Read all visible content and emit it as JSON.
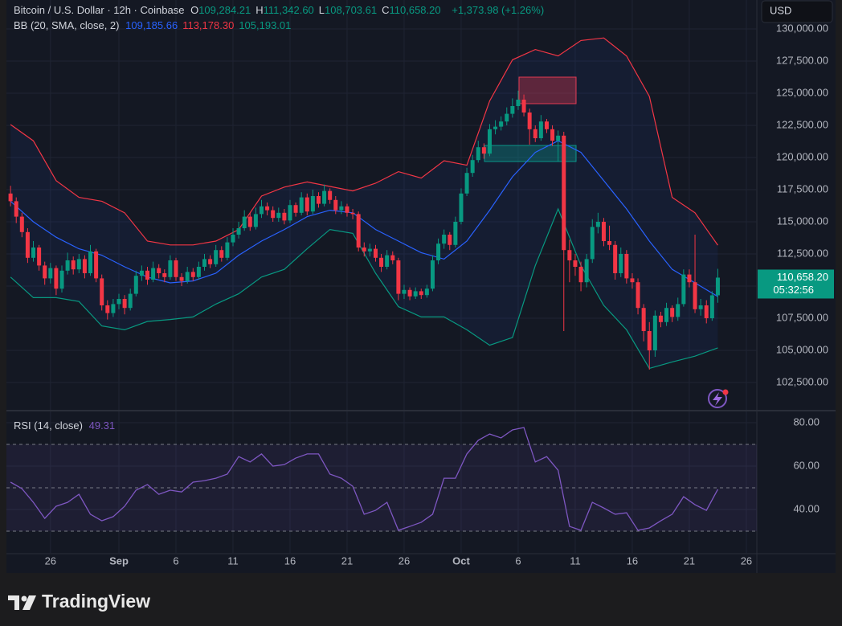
{
  "currency": "USD",
  "branding": "TradingView",
  "chart_data": [
    {
      "type": "candlestick",
      "title": "Bitcoin / U.S. Dollar · 12h · Coinbase",
      "ohlc": [
        {
          "key": "O",
          "label": "109,284.21"
        },
        {
          "key": "H",
          "label": "111,342.60"
        },
        {
          "key": "L",
          "label": "108,703.61"
        },
        {
          "key": "C",
          "label": "110,658.20"
        }
      ],
      "change": "+1,373.98 (+1.26%)",
      "up_color": "#089981",
      "down_color": "#f23645",
      "xlim": [
        22.14,
        87.92
      ],
      "ylim": [
        100375,
        132250
      ],
      "yticks": [
        {
          "value": 102500,
          "label": "102,500.00"
        },
        {
          "value": 105000,
          "label": "105,000.00"
        },
        {
          "value": 107500,
          "label": "107,500.00"
        },
        {
          "value": 110000,
          "label": "110,000.00"
        },
        {
          "value": 112500,
          "label": "112,500.00"
        },
        {
          "value": 115000,
          "label": "115,000.00"
        },
        {
          "value": 117500,
          "label": "117,500.00"
        },
        {
          "value": 120000,
          "label": "120,000.00"
        },
        {
          "value": 122500,
          "label": "122,500.00"
        },
        {
          "value": 125000,
          "label": "125,000.00"
        },
        {
          "value": 127500,
          "label": "127,500.00"
        },
        {
          "value": 130000,
          "label": "130,000.00"
        }
      ],
      "grid": true,
      "x": [
        22.5,
        23,
        23.5,
        24,
        24.5,
        25,
        25.5,
        26,
        26.5,
        27,
        27.5,
        28,
        28.5,
        29,
        29.5,
        30,
        30.5,
        31,
        31.5,
        32,
        32.5,
        33,
        33.5,
        34,
        34.5,
        35,
        35.5,
        36,
        36.5,
        37,
        37.5,
        38,
        38.5,
        39,
        39.5,
        40,
        40.5,
        41,
        41.5,
        42,
        42.5,
        43,
        43.5,
        44,
        44.5,
        45,
        45.5,
        46,
        46.5,
        47,
        47.5,
        48,
        48.5,
        49,
        49.5,
        50,
        50.5,
        51,
        51.5,
        52,
        52.5,
        53,
        53.5,
        54,
        54.5,
        55,
        55.5,
        56,
        56.5,
        57,
        57.5,
        58,
        58.5,
        59,
        59.5,
        60,
        60.5,
        61,
        61.5,
        62,
        62.5,
        63,
        63.5,
        64,
        64.5,
        65,
        65.5,
        66,
        66.5,
        67,
        67.5,
        68,
        68.5,
        69,
        69.5,
        70,
        70.5,
        71,
        71.5,
        72,
        72.5,
        73,
        73.5,
        74,
        74.5,
        75,
        75.5,
        76,
        76.5,
        77,
        77.5,
        78,
        78.5,
        79,
        79.5,
        80,
        80.5,
        81,
        81.5,
        82,
        82.5,
        83,
        83.5,
        84,
        84.5
      ],
      "open": [
        117200,
        116600,
        115400,
        114200,
        112200,
        113000,
        111600,
        110600,
        111400,
        109800,
        111200,
        112000,
        111300,
        112100,
        111000,
        112700,
        110600,
        108500,
        107900,
        108600,
        109000,
        108300,
        109400,
        110800,
        111200,
        110500,
        111400,
        111000,
        110700,
        112000,
        110700,
        110400,
        111100,
        110700,
        111500,
        112100,
        111700,
        112800,
        112200,
        113400,
        114000,
        114500,
        115400,
        114600,
        115600,
        116200,
        115900,
        115300,
        115700,
        115100,
        116300,
        115700,
        116900,
        115800,
        117000,
        116400,
        117400,
        116700,
        115900,
        116200,
        115700,
        115600,
        113000,
        112700,
        112900,
        112200,
        111500,
        112400,
        112000,
        109400,
        109700,
        109200,
        109600,
        109300,
        109800,
        112000,
        113300,
        114000,
        113200,
        115000,
        117200,
        118800,
        119800,
        120800,
        120300,
        122200,
        122400,
        122800,
        123400,
        124000,
        124500,
        123500,
        122200,
        121500,
        122800,
        122200,
        121300,
        121700,
        112800,
        112000,
        111500,
        110300,
        112100,
        114600,
        115000,
        113500,
        113200,
        111000,
        112500,
        110600,
        110300,
        108300,
        106500,
        105000,
        107700,
        107200,
        108300,
        107600,
        108600,
        110900,
        110300,
        108200,
        108500,
        107500,
        109284.21
      ],
      "high": [
        117800,
        116900,
        115700,
        114500,
        113500,
        113200,
        111900,
        111800,
        111600,
        111600,
        112600,
        112300,
        112500,
        112400,
        113200,
        112900,
        110900,
        108900,
        109000,
        109400,
        109300,
        109800,
        111200,
        111600,
        111500,
        111900,
        111700,
        111300,
        112400,
        112200,
        111000,
        111500,
        111400,
        111900,
        112500,
        112400,
        113200,
        113100,
        113800,
        114500,
        115000,
        115900,
        115700,
        116100,
        116700,
        116500,
        116200,
        116100,
        116000,
        116700,
        116500,
        117300,
        117200,
        117500,
        117300,
        117900,
        117600,
        117000,
        116600,
        116400,
        116000,
        115800,
        113400,
        113300,
        113200,
        112500,
        112800,
        112700,
        112200,
        110100,
        109900,
        109900,
        109800,
        110100,
        112400,
        113700,
        114400,
        114200,
        115400,
        117600,
        119200,
        120200,
        121300,
        121100,
        122600,
        122900,
        123200,
        123900,
        124600,
        125200,
        124900,
        123800,
        122500,
        123300,
        123000,
        122500,
        122100,
        122000,
        113600,
        112500,
        111900,
        112500,
        115200,
        115700,
        115300,
        114700,
        113500,
        113000,
        112800,
        111000,
        110600,
        108600,
        107200,
        108100,
        108000,
        108700,
        108500,
        109100,
        111300,
        111300,
        114000,
        109000,
        108900,
        109600,
        111342.6
      ],
      "low": [
        116200,
        114900,
        113800,
        111800,
        111900,
        111200,
        110100,
        110200,
        109300,
        109500,
        110900,
        110900,
        111000,
        110600,
        110800,
        110300,
        108100,
        107400,
        107600,
        108200,
        107800,
        108100,
        109200,
        110400,
        110100,
        110300,
        110600,
        110300,
        110500,
        110400,
        110000,
        110200,
        110400,
        110500,
        111200,
        111400,
        111500,
        111900,
        112000,
        113100,
        113700,
        114300,
        114300,
        114400,
        115300,
        115500,
        115000,
        115000,
        114800,
        114900,
        115400,
        115500,
        115500,
        115600,
        116100,
        116200,
        116400,
        115600,
        115600,
        115400,
        115200,
        112700,
        112300,
        112300,
        111900,
        111100,
        111300,
        111700,
        108900,
        109000,
        108900,
        109000,
        109000,
        109100,
        109600,
        111700,
        112900,
        112800,
        113000,
        114800,
        117000,
        118500,
        119600,
        119900,
        120100,
        121800,
        122100,
        122500,
        123100,
        123700,
        123200,
        121000,
        121200,
        121300,
        121900,
        120900,
        119700,
        106500,
        110300,
        110800,
        109600,
        109900,
        111800,
        114100,
        113100,
        112800,
        110500,
        110700,
        110200,
        109800,
        107800,
        105700,
        103500,
        104500,
        106800,
        106900,
        107200,
        107300,
        108400,
        109900,
        107900,
        107700,
        107100,
        107300,
        108703.61
      ],
      "close": [
        116600,
        115400,
        114200,
        112200,
        113000,
        111600,
        110600,
        111400,
        109800,
        111200,
        112000,
        111300,
        112100,
        111000,
        112700,
        110600,
        108500,
        107900,
        108600,
        109000,
        108300,
        109400,
        110800,
        111200,
        110500,
        111400,
        111000,
        110700,
        112000,
        110700,
        110400,
        111100,
        110700,
        111500,
        112100,
        111700,
        112800,
        112200,
        113400,
        114000,
        114500,
        115400,
        114600,
        115600,
        116200,
        115900,
        115300,
        115700,
        115100,
        116300,
        115700,
        116900,
        115800,
        117000,
        116400,
        117400,
        116700,
        115900,
        116200,
        115700,
        115600,
        113000,
        112700,
        112900,
        112200,
        111500,
        112400,
        112000,
        109400,
        109700,
        109200,
        109600,
        109300,
        109800,
        112000,
        113300,
        114000,
        113200,
        115000,
        117200,
        118800,
        119800,
        120800,
        120300,
        122200,
        122400,
        122800,
        123400,
        124000,
        124500,
        123500,
        122200,
        121500,
        122800,
        122200,
        121300,
        121700,
        112800,
        112000,
        111500,
        110300,
        112100,
        114600,
        115000,
        113500,
        113200,
        111000,
        112500,
        110600,
        110300,
        108300,
        106500,
        105000,
        107700,
        107200,
        108300,
        107600,
        108600,
        110900,
        110300,
        108200,
        108500,
        107500,
        109284.21,
        110658.2
      ],
      "last_price": {
        "value": 110658.2,
        "label": "110,658.20"
      },
      "countdown": "05:32:56",
      "indicator": {
        "label": "BB (20, SMA, close, 2)",
        "fill": "rgba(41,98,255,0.07)",
        "x": [
          22.5,
          24.5,
          26.5,
          28.5,
          30.5,
          32.5,
          34.5,
          36.5,
          38.5,
          40.5,
          42.5,
          44.5,
          46.5,
          48.5,
          50.5,
          52.5,
          54.5,
          56.5,
          58.5,
          60.5,
          62.5,
          64.5,
          66.5,
          68.5,
          70.5,
          72.5,
          74.5,
          76.5,
          78.5,
          80.5,
          82.5,
          84.5
        ],
        "series": [
          {
            "color": "#2962ff",
            "values": [
              116600,
              115000,
              113800,
              112900,
              112400,
              111500,
              110700,
              110250,
              110400,
              111000,
              112400,
              113500,
              114400,
              115400,
              115900,
              115700,
              114400,
              113500,
              112600,
              112100,
              113500,
              115900,
              118500,
              120400,
              121300,
              120400,
              118200,
              116000,
              113500,
              111300,
              110250,
              109185.66
            ],
            "last": {
              "value": 109185.66,
              "label": "109,185.66"
            }
          },
          {
            "color": "#f23645",
            "values": [
              122560,
              121300,
              118200,
              116900,
              116600,
              115700,
              113500,
              113200,
              113200,
              113500,
              114400,
              117000,
              117700,
              118100,
              117750,
              117400,
              118000,
              118900,
              118400,
              119750,
              119400,
              124400,
              127600,
              128400,
              127900,
              129100,
              129300,
              127900,
              124750,
              116900,
              115700,
              113178.3
            ],
            "last": {
              "value": 113178.3,
              "label": "113,178.30"
            }
          },
          {
            "color": "#089981",
            "values": [
              110700,
              109100,
              109100,
              108800,
              106900,
              106600,
              107250,
              107400,
              107600,
              108600,
              109400,
              110700,
              111300,
              112900,
              114400,
              114100,
              111000,
              108400,
              107600,
              107600,
              106600,
              105400,
              106000,
              111600,
              116000,
              111600,
              108500,
              106600,
              103600,
              104100,
              104550,
              105193.01
            ],
            "last": {
              "value": 105193.01,
              "label": "105,193.01"
            }
          }
        ]
      }
    },
    {
      "type": "line",
      "title": "RSI (14, close)",
      "color": "#7e57c2",
      "last": {
        "value": 49.31,
        "label": "49.31"
      },
      "xlim": [
        22.14,
        87.92
      ],
      "ylim": [
        20,
        85.2
      ],
      "yticks": [
        {
          "value": 40,
          "label": "40.00"
        },
        {
          "value": 60,
          "label": "60.00"
        },
        {
          "value": 80,
          "label": "80.00"
        }
      ],
      "levels": [
        70,
        50,
        30
      ],
      "xticks": [
        26,
        {
          "value": 32,
          "label": "Sep"
        },
        {
          "value": 37,
          "label": "6"
        },
        {
          "value": 42,
          "label": "11"
        },
        {
          "value": 47,
          "label": "16"
        },
        {
          "value": 52,
          "label": "21"
        },
        {
          "value": 57,
          "label": "26"
        },
        {
          "value": 62,
          "label": "Oct"
        },
        {
          "value": 67,
          "label": "6"
        },
        {
          "value": 72,
          "label": "11"
        },
        {
          "value": 77,
          "label": "16"
        },
        {
          "value": 82,
          "label": "21"
        },
        {
          "value": 87,
          "label": "26"
        }
      ],
      "x": [
        22.5,
        23.5,
        24.5,
        25.5,
        26.5,
        27.5,
        28.5,
        29.5,
        30.5,
        31.5,
        32.5,
        33.5,
        34.5,
        35.5,
        36.5,
        37.5,
        38.5,
        39.5,
        40.5,
        41.5,
        42.5,
        43.5,
        44.5,
        45.5,
        46.5,
        47.5,
        48.5,
        49.5,
        50.5,
        51.5,
        52.5,
        53.5,
        54.5,
        55.5,
        56.5,
        57.5,
        58.5,
        59.5,
        60.5,
        61.5,
        62.5,
        63.5,
        64.5,
        65.5,
        66.5,
        67.5,
        68.5,
        69.5,
        70.5,
        71.5,
        72.5,
        73.5,
        74.5,
        75.5,
        76.5,
        77.5,
        78.5,
        79.5,
        80.5,
        81.5,
        82.5,
        83.5,
        84.5
      ],
      "values": [
        52.6,
        49.6,
        43.3,
        35.9,
        41.5,
        43.3,
        47.0,
        37.8,
        34.8,
        36.7,
        41.5,
        48.9,
        51.5,
        47.0,
        48.9,
        48.1,
        52.6,
        53.3,
        54.4,
        56.3,
        64.4,
        61.9,
        65.6,
        60.0,
        60.7,
        63.7,
        65.6,
        65.6,
        56.3,
        54.4,
        50.7,
        37.8,
        39.6,
        43.3,
        30.4,
        32.2,
        34.1,
        37.8,
        54.4,
        54.4,
        65.6,
        71.9,
        74.8,
        73.0,
        76.7,
        77.8,
        61.9,
        64.4,
        58.1,
        32.2,
        30.4,
        43.3,
        40.7,
        37.8,
        38.5,
        30.4,
        31.5,
        34.8,
        37.8,
        45.9,
        42.2,
        39.6,
        49.31
      ]
    }
  ]
}
